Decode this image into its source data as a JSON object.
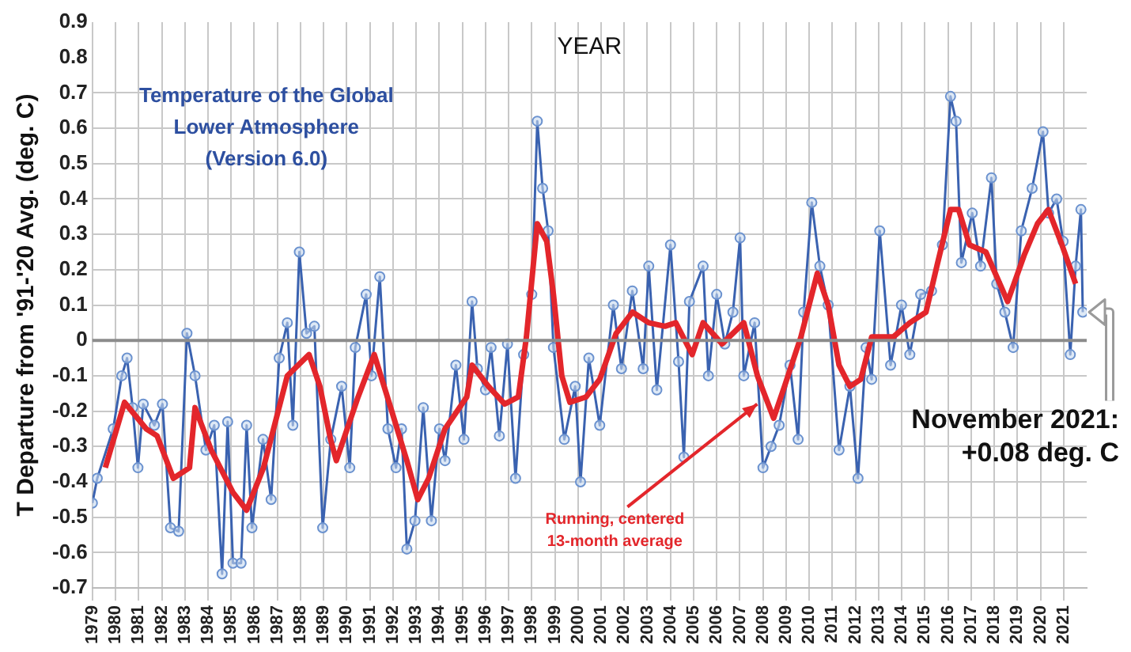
{
  "chart_data": {
    "type": "line",
    "title": "Temperature of the Global Lower Atmosphere (Version 6.0)",
    "ylabel": "T Departure from '91-'20 Avg. (deg. C)",
    "annotations": [
      "YEAR",
      {
        "text": "Running, centered 13-month average",
        "x": 2007.75,
        "y": -0.18
      },
      "November 2021: +0.08 deg. C"
    ],
    "xlim": [
      1979,
      2022
    ],
    "xticks": [
      1979,
      1980,
      1981,
      1982,
      1983,
      1984,
      1985,
      1986,
      1987,
      1988,
      1989,
      1990,
      1991,
      1992,
      1993,
      1994,
      1995,
      1996,
      1997,
      1998,
      1999,
      2000,
      2001,
      2002,
      2003,
      2004,
      2005,
      2006,
      2007,
      2008,
      2009,
      2010,
      2011,
      2012,
      2013,
      2014,
      2015,
      2016,
      2017,
      2018,
      2019,
      2020,
      2021
    ],
    "ylim": [
      -0.7,
      0.9
    ],
    "yticks": [
      -0.7,
      -0.6,
      -0.5,
      -0.4,
      -0.3,
      -0.2,
      -0.1,
      0,
      0.1,
      0.2,
      0.3,
      0.4,
      0.5,
      0.6,
      0.7,
      0.8,
      0.9
    ],
    "grid": true,
    "legend": false,
    "ref_lines": [
      {
        "axis": "y",
        "value": 0,
        "color": "#8c8c8c"
      }
    ],
    "series": [
      {
        "color": "#3a62b0",
        "marker": "circle",
        "x": [
          1979.0,
          1979.21,
          1979.9,
          1980.27,
          1980.5,
          1980.74,
          1980.97,
          1981.2,
          1981.68,
          1982.03,
          1982.38,
          1982.73,
          1983.09,
          1983.44,
          1983.91,
          1984.27,
          1984.61,
          1984.85,
          1985.08,
          1985.43,
          1985.67,
          1985.9,
          1986.38,
          1986.73,
          1987.08,
          1987.43,
          1987.67,
          1987.95,
          1988.26,
          1988.6,
          1988.96,
          1989.31,
          1989.78,
          1990.13,
          1990.37,
          1990.84,
          1991.07,
          1991.43,
          1991.78,
          1992.13,
          1992.37,
          1992.6,
          1992.95,
          1993.31,
          1993.66,
          1994.01,
          1994.25,
          1994.72,
          1995.07,
          1995.42,
          1995.65,
          1996.0,
          1996.24,
          1996.6,
          1996.95,
          1997.3,
          1997.65,
          1998.0,
          1998.24,
          1998.47,
          1998.71,
          1998.94,
          1999.41,
          1999.88,
          2000.11,
          2000.47,
          2000.94,
          2001.53,
          2001.88,
          2002.35,
          2002.82,
          2003.06,
          2003.41,
          2004.0,
          2004.35,
          2004.58,
          2004.82,
          2005.41,
          2005.64,
          2006.0,
          2006.35,
          2006.7,
          2007.01,
          2007.17,
          2007.64,
          2008.0,
          2008.35,
          2008.7,
          2009.17,
          2009.52,
          2009.76,
          2010.11,
          2010.46,
          2010.82,
          2011.29,
          2011.76,
          2012.11,
          2012.46,
          2012.7,
          2013.05,
          2013.52,
          2013.99,
          2014.35,
          2014.82,
          2015.29,
          2015.76,
          2016.11,
          2016.35,
          2016.58,
          2017.05,
          2017.41,
          2017.88,
          2018.11,
          2018.46,
          2018.82,
          2019.17,
          2019.64,
          2020.11,
          2020.35,
          2020.7,
          2020.98,
          2021.29,
          2021.52,
          2021.75,
          2021.83
        ],
        "values": [
          -0.46,
          -0.39,
          -0.25,
          -0.1,
          -0.05,
          -0.19,
          -0.36,
          -0.18,
          -0.24,
          -0.18,
          -0.53,
          -0.54,
          0.02,
          -0.1,
          -0.31,
          -0.24,
          -0.66,
          -0.23,
          -0.63,
          -0.63,
          -0.24,
          -0.53,
          -0.28,
          -0.45,
          -0.05,
          0.05,
          -0.24,
          0.25,
          0.02,
          0.04,
          -0.53,
          -0.28,
          -0.13,
          -0.36,
          -0.02,
          0.13,
          -0.1,
          0.18,
          -0.25,
          -0.36,
          -0.25,
          -0.59,
          -0.51,
          -0.19,
          -0.51,
          -0.25,
          -0.34,
          -0.07,
          -0.28,
          0.11,
          -0.08,
          -0.14,
          -0.02,
          -0.27,
          -0.01,
          -0.39,
          -0.04,
          0.13,
          0.62,
          0.43,
          0.31,
          -0.02,
          -0.28,
          -0.13,
          -0.4,
          -0.05,
          -0.24,
          0.1,
          -0.08,
          0.14,
          -0.08,
          0.21,
          -0.14,
          0.27,
          -0.06,
          -0.33,
          0.11,
          0.21,
          -0.1,
          0.13,
          -0.01,
          0.08,
          0.29,
          -0.1,
          0.05,
          -0.36,
          -0.3,
          -0.24,
          -0.07,
          -0.28,
          0.08,
          0.39,
          0.21,
          0.1,
          -0.31,
          -0.13,
          -0.39,
          -0.02,
          -0.11,
          0.31,
          -0.07,
          0.1,
          -0.04,
          0.13,
          0.14,
          0.27,
          0.69,
          0.62,
          0.22,
          0.36,
          0.21,
          0.46,
          0.16,
          0.08,
          -0.02,
          0.31,
          0.43,
          0.59,
          0.36,
          0.4,
          0.28,
          -0.04,
          0.21,
          0.37,
          0.08
        ]
      },
      {
        "color": "#e3262b",
        "marker": "none",
        "x": [
          1979.56,
          1980.39,
          1981.33,
          1981.8,
          1982.5,
          1983.2,
          1983.44,
          1984.14,
          1985.08,
          1985.67,
          1986.4,
          1987.43,
          1988.37,
          1988.84,
          1989.3,
          1989.55,
          1990.49,
          1991.19,
          1991.9,
          1992.6,
          1993.07,
          1993.54,
          1994.25,
          1995.19,
          1995.42,
          1996.13,
          1996.83,
          1997.42,
          1997.77,
          1998.24,
          1998.65,
          1998.94,
          1999.3,
          1999.65,
          2000.35,
          2000.94,
          2001.65,
          2002.36,
          2003.06,
          2003.76,
          2004.23,
          2004.94,
          2005.41,
          2006.23,
          2007.17,
          2007.76,
          2008.46,
          2008.93,
          2009.64,
          2010.35,
          2010.82,
          2011.29,
          2011.76,
          2012.23,
          2012.7,
          2013.64,
          2014.35,
          2015.05,
          2015.52,
          2016.11,
          2016.46,
          2016.93,
          2017.64,
          2018.58,
          2019.29,
          2019.87,
          2020.34,
          2020.93,
          2021.52
        ],
        "values": [
          -0.36,
          -0.175,
          -0.25,
          -0.27,
          -0.39,
          -0.36,
          -0.19,
          -0.31,
          -0.43,
          -0.48,
          -0.36,
          -0.1,
          -0.04,
          -0.13,
          -0.28,
          -0.34,
          -0.16,
          -0.04,
          -0.19,
          -0.34,
          -0.45,
          -0.39,
          -0.25,
          -0.16,
          -0.07,
          -0.13,
          -0.18,
          -0.16,
          0.01,
          0.33,
          0.28,
          0.13,
          -0.1,
          -0.175,
          -0.16,
          -0.11,
          0.02,
          0.08,
          0.05,
          0.04,
          0.05,
          -0.04,
          0.05,
          -0.01,
          0.05,
          -0.1,
          -0.22,
          -0.13,
          0.01,
          0.19,
          0.1,
          -0.07,
          -0.13,
          -0.11,
          0.01,
          0.01,
          0.05,
          0.08,
          0.21,
          0.37,
          0.37,
          0.27,
          0.25,
          0.11,
          0.24,
          0.33,
          0.37,
          0.27,
          0.16
        ]
      }
    ]
  }
}
